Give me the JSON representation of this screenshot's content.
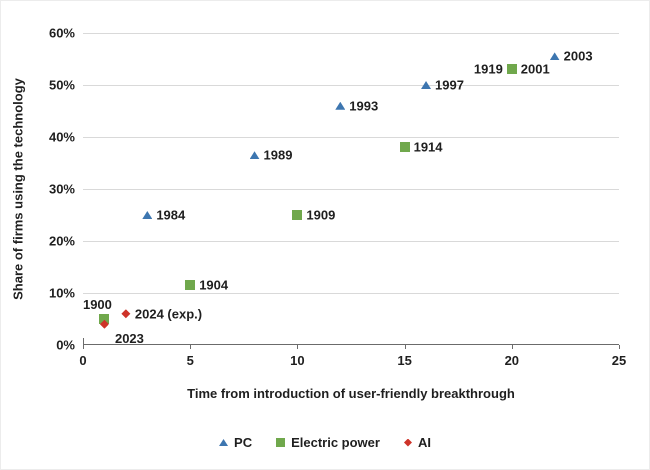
{
  "chart_data": {
    "type": "scatter",
    "title": "",
    "xlabel": "Time from introduction of user-friendly breakthrough",
    "ylabel": "Share of firms using the technology",
    "xlim": [
      0,
      25
    ],
    "ylim": [
      0,
      60
    ],
    "x_ticks": [
      0,
      5,
      10,
      15,
      20,
      25
    ],
    "y_ticks": [
      "0%",
      "10%",
      "20%",
      "30%",
      "40%",
      "50%",
      "60%"
    ],
    "grid": "horizontal-only",
    "legend_position": "bottom-center",
    "colors": {
      "pc": "#3d76b0",
      "electric_power": "#70a84c",
      "ai": "#ce3329",
      "gridline": "#d9d9d9",
      "axis": "#6b6b6b",
      "text": "#1f1f1f"
    },
    "series": [
      {
        "name": "PC",
        "marker": "triangle",
        "color": "#3d76b0",
        "points": [
          {
            "x": 3,
            "y": 25,
            "label": "1984",
            "label_pos": "right"
          },
          {
            "x": 8,
            "y": 36.5,
            "label": "1989",
            "label_pos": "right"
          },
          {
            "x": 12,
            "y": 46,
            "label": "1993",
            "label_pos": "right"
          },
          {
            "x": 16,
            "y": 50,
            "label": "1997",
            "label_pos": "right"
          },
          {
            "x": 20,
            "y": 53,
            "label": "2001",
            "label_pos": "right"
          },
          {
            "x": 22,
            "y": 55.5,
            "label": "2003",
            "label_pos": "right"
          }
        ]
      },
      {
        "name": "Electric power",
        "marker": "square",
        "color": "#70a84c",
        "points": [
          {
            "x": 1,
            "y": 5,
            "label": "1900",
            "label_pos": "above",
            "label_dx": -7
          },
          {
            "x": 5,
            "y": 11.5,
            "label": "1904",
            "label_pos": "right"
          },
          {
            "x": 10,
            "y": 25,
            "label": "1909",
            "label_pos": "right"
          },
          {
            "x": 15,
            "y": 38,
            "label": "1914",
            "label_pos": "right"
          },
          {
            "x": 20,
            "y": 53,
            "label": "1919",
            "label_pos": "left"
          }
        ]
      },
      {
        "name": "AI",
        "marker": "diamond",
        "color": "#ce3329",
        "points": [
          {
            "x": 1,
            "y": 4,
            "label": "2023",
            "label_pos": "below",
            "label_dx": 25
          },
          {
            "x": 2,
            "y": 6,
            "label": "2024 (exp.)",
            "label_pos": "right"
          }
        ]
      }
    ]
  }
}
